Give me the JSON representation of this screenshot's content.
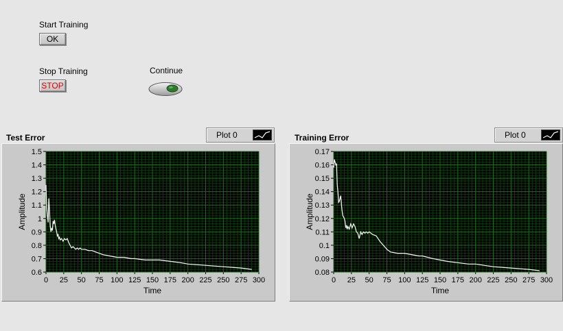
{
  "controls": {
    "start_label": "Start Training",
    "ok_button": "OK",
    "stop_label": "Stop Training",
    "stop_button": "STOP",
    "continue_label": "Continue"
  },
  "colors": {
    "plot_bg": "#000000",
    "grid": "#1a6b1a",
    "grid_minor": "#0e3a0e",
    "trace": "#ffffff",
    "stop_text": "#e00000",
    "led": "#2f7a2f"
  },
  "chart_data": [
    {
      "type": "line",
      "title": "Test Error",
      "legend": "Plot 0",
      "xlabel": "Time",
      "ylabel": "Amplitude",
      "xlim": [
        0,
        300
      ],
      "ylim": [
        0.6,
        1.5
      ],
      "xticks": [
        0,
        25,
        50,
        75,
        100,
        125,
        150,
        175,
        200,
        225,
        250,
        275,
        300
      ],
      "yticks": [
        0.6,
        0.7,
        0.8,
        0.9,
        1,
        1.1,
        1.2,
        1.3,
        1.4,
        1.5
      ],
      "x": [
        0,
        1,
        2,
        3,
        4,
        5,
        6,
        7,
        8,
        9,
        10,
        11,
        12,
        13,
        14,
        15,
        16,
        17,
        18,
        19,
        20,
        22,
        24,
        26,
        28,
        30,
        32,
        34,
        36,
        38,
        40,
        42,
        44,
        46,
        48,
        50,
        55,
        60,
        65,
        70,
        75,
        80,
        90,
        100,
        110,
        120,
        125,
        140,
        160,
        175,
        190,
        200,
        225,
        250,
        275,
        290
      ],
      "values": [
        1.25,
        1.08,
        1.02,
        0.97,
        1.15,
        1.05,
        0.94,
        0.9,
        0.93,
        0.91,
        0.98,
        0.96,
        0.99,
        0.95,
        0.92,
        0.9,
        0.87,
        0.88,
        0.85,
        0.86,
        0.84,
        0.85,
        0.83,
        0.85,
        0.84,
        0.85,
        0.82,
        0.8,
        0.78,
        0.79,
        0.78,
        0.77,
        0.78,
        0.77,
        0.78,
        0.77,
        0.77,
        0.76,
        0.76,
        0.75,
        0.74,
        0.73,
        0.72,
        0.71,
        0.71,
        0.7,
        0.7,
        0.69,
        0.69,
        0.68,
        0.67,
        0.66,
        0.65,
        0.64,
        0.63,
        0.62
      ]
    },
    {
      "type": "line",
      "title": "Training Error",
      "legend": "Plot 0",
      "xlabel": "Time",
      "ylabel": "Amplitude",
      "xlim": [
        0,
        300
      ],
      "ylim": [
        0.08,
        0.17
      ],
      "xticks": [
        0,
        25,
        50,
        75,
        100,
        125,
        150,
        175,
        200,
        225,
        250,
        275,
        300
      ],
      "yticks": [
        0.08,
        0.09,
        0.1,
        0.11,
        0.12,
        0.13,
        0.14,
        0.15,
        0.16,
        0.17
      ],
      "x": [
        0,
        1,
        2,
        3,
        4,
        5,
        6,
        7,
        8,
        9,
        10,
        11,
        12,
        13,
        14,
        15,
        16,
        17,
        18,
        19,
        20,
        22,
        24,
        26,
        28,
        30,
        32,
        34,
        36,
        38,
        40,
        42,
        44,
        46,
        48,
        50,
        55,
        60,
        65,
        70,
        75,
        80,
        90,
        100,
        110,
        120,
        125,
        140,
        160,
        175,
        190,
        200,
        225,
        250,
        275,
        290
      ],
      "values": [
        0.158,
        0.164,
        0.162,
        0.16,
        0.161,
        0.145,
        0.14,
        0.132,
        0.133,
        0.135,
        0.137,
        0.13,
        0.125,
        0.122,
        0.121,
        0.12,
        0.118,
        0.113,
        0.115,
        0.112,
        0.114,
        0.112,
        0.116,
        0.113,
        0.116,
        0.114,
        0.11,
        0.109,
        0.105,
        0.11,
        0.108,
        0.11,
        0.109,
        0.11,
        0.109,
        0.11,
        0.108,
        0.107,
        0.103,
        0.1,
        0.097,
        0.095,
        0.094,
        0.094,
        0.093,
        0.092,
        0.092,
        0.09,
        0.088,
        0.087,
        0.086,
        0.086,
        0.084,
        0.083,
        0.082,
        0.081
      ]
    }
  ]
}
